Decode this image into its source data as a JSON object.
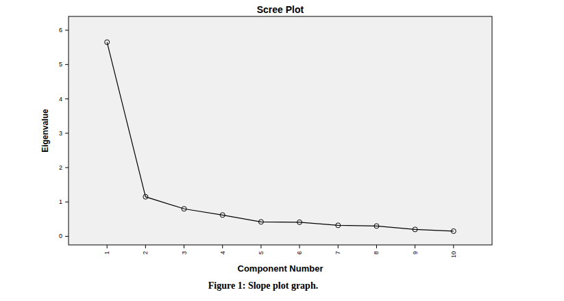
{
  "chart_data": {
    "type": "line",
    "title": "Scree Plot",
    "x_label": "Component Number",
    "y_label": "Eigenvalue",
    "caption": "Figure 1: Slope plot graph.",
    "x": [
      1,
      2,
      3,
      4,
      5,
      6,
      7,
      8,
      9,
      10
    ],
    "values": [
      5.65,
      1.15,
      0.8,
      0.62,
      0.42,
      0.41,
      0.32,
      0.3,
      0.2,
      0.15
    ],
    "color": "#000000",
    "marker": "circle",
    "line_style": "solid",
    "xlim": [
      0,
      11
    ],
    "xticks": [
      1,
      2,
      3,
      4,
      5,
      6,
      7,
      8,
      9,
      10
    ],
    "ylim": [
      -0.25,
      6.4
    ],
    "yticks": [
      0,
      1,
      2,
      3,
      4,
      5,
      6
    ],
    "grid": false
  }
}
